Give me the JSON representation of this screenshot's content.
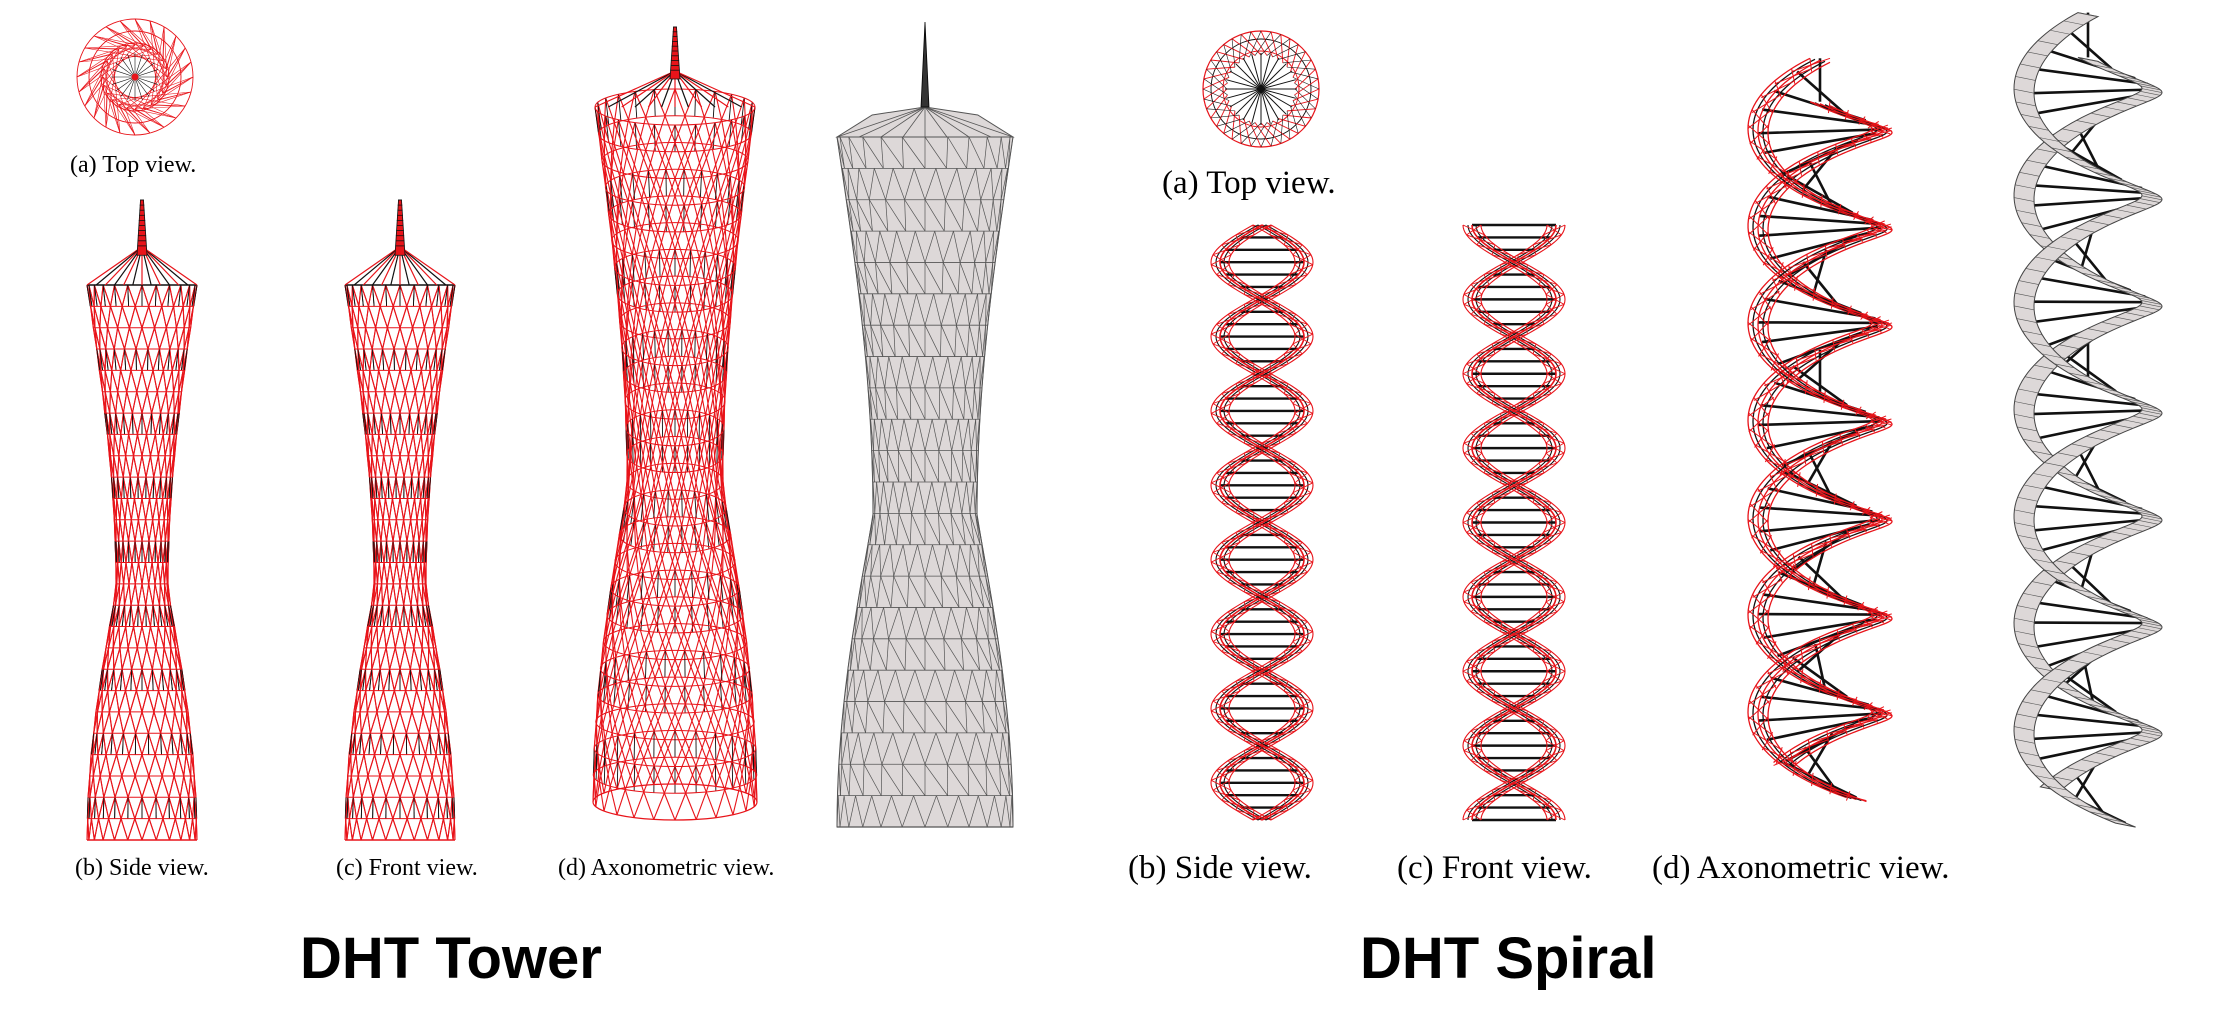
{
  "tower": {
    "title": "DHT Tower",
    "captions": {
      "top": "(a) Top view.",
      "side": "(b) Side view.",
      "front": "(c) Front view.",
      "axo": "(d) Axonometric view."
    }
  },
  "spiral": {
    "title": "DHT Spiral",
    "captions": {
      "top": "(a) Top view.",
      "side": "(b) Side view.",
      "front": "(c) Front view.",
      "axo": "(d) Axonometric view."
    }
  },
  "colors": {
    "wire_red": "#e8141a",
    "wire_black": "#111111",
    "surface_gray": "#ddd8d8",
    "surface_line": "#555555"
  }
}
